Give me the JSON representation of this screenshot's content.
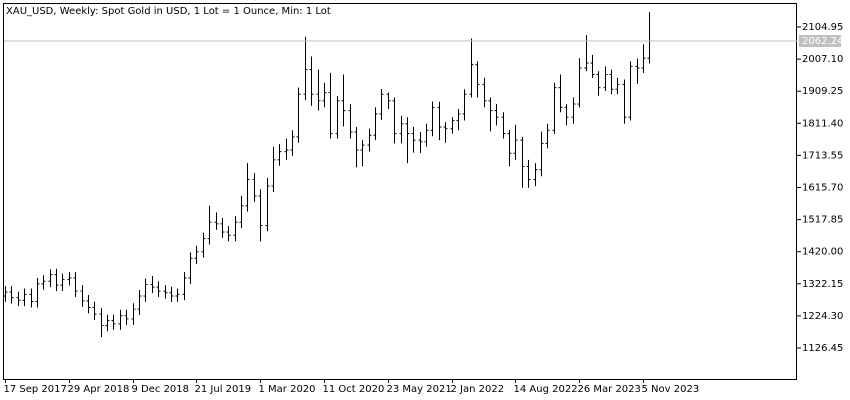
{
  "chart_data": {
    "type": "ohlc",
    "title": "XAU_USD, Weekly:  Spot Gold in USD, 1 Lot = 1 Ounce, Min: 1 Lot",
    "color": "#000000",
    "categories": [
      "17 Sep 2017",
      null,
      null,
      null,
      null,
      null,
      null,
      null,
      null,
      null,
      "29 Apr 2018",
      null,
      null,
      null,
      null,
      null,
      null,
      null,
      null,
      null,
      "9 Dec 2018",
      null,
      null,
      null,
      null,
      null,
      null,
      null,
      null,
      null,
      "21 Jul 2019",
      null,
      null,
      null,
      null,
      null,
      null,
      null,
      null,
      null,
      "1 Mar 2020",
      null,
      null,
      null,
      null,
      null,
      null,
      null,
      null,
      null,
      "11 Oct 2020",
      null,
      null,
      null,
      null,
      null,
      null,
      null,
      null,
      null,
      "23 May 2021",
      null,
      null,
      null,
      null,
      null,
      null,
      null,
      null,
      null,
      "2 Jan 2022",
      null,
      null,
      null,
      null,
      null,
      null,
      null,
      null,
      null,
      "14 Aug 2022",
      null,
      null,
      null,
      null,
      null,
      null,
      null,
      null,
      null,
      "26 Mar 2023",
      null,
      null,
      null,
      null,
      null,
      null,
      null,
      null,
      null,
      "5 Nov 2023",
      null
    ],
    "open": [
      1285,
      1297,
      1280,
      1272,
      1290,
      1268,
      1322,
      1330,
      1350,
      1318,
      1335,
      1340,
      1300,
      1270,
      1250,
      1230,
      1195,
      1210,
      1200,
      1225,
      1215,
      1245,
      1285,
      1320,
      1312,
      1300,
      1295,
      1285,
      1290,
      1340,
      1400,
      1420,
      1460,
      1510,
      1505,
      1480,
      1470,
      1510,
      1560,
      1640,
      1590,
      1500,
      1620,
      1700,
      1725,
      1730,
      1770,
      1900,
      1975,
      1900,
      1880,
      1905,
      1780,
      1880,
      1850,
      1785,
      1730,
      1745,
      1775,
      1840,
      1900,
      1880,
      1780,
      1810,
      1780,
      1760,
      1755,
      1790,
      1860,
      1800,
      1795,
      1820,
      1840,
      1900,
      1990,
      1930,
      1880,
      1850,
      1830,
      1780,
      1720,
      1760,
      1680,
      1640,
      1670,
      1750,
      1790,
      1920,
      1860,
      1830,
      1870,
      1980,
      1995,
      1960,
      1920,
      1960,
      1915,
      1930,
      1830,
      1985,
      1980,
      2010
    ],
    "high": [
      1315,
      1315,
      1298,
      1308,
      1308,
      1340,
      1348,
      1366,
      1368,
      1353,
      1358,
      1358,
      1318,
      1288,
      1268,
      1248,
      1228,
      1228,
      1243,
      1243,
      1263,
      1303,
      1338,
      1346,
      1330,
      1318,
      1313,
      1308,
      1358,
      1418,
      1438,
      1478,
      1560,
      1540,
      1523,
      1498,
      1528,
      1590,
      1690,
      1660,
      1610,
      1645,
      1740,
      1748,
      1765,
      1790,
      1920,
      2075,
      2015,
      1975,
      1935,
      1965,
      1895,
      1960,
      1870,
      1800,
      1760,
      1795,
      1860,
      1916,
      1905,
      1890,
      1834,
      1830,
      1800,
      1785,
      1810,
      1878,
      1877,
      1815,
      1830,
      1855,
      1915,
      2070,
      2000,
      1950,
      1890,
      1870,
      1845,
      1790,
      1807,
      1770,
      1700,
      1690,
      1786,
      1810,
      1935,
      1960,
      1870,
      1890,
      2010,
      2080,
      2020,
      1970,
      1985,
      1975,
      1950,
      1945,
      2000,
      2009,
      2052,
      2150
    ],
    "low": [
      1267,
      1262,
      1254,
      1254,
      1250,
      1250,
      1304,
      1312,
      1300,
      1300,
      1317,
      1282,
      1252,
      1232,
      1212,
      1160,
      1177,
      1182,
      1182,
      1197,
      1197,
      1227,
      1267,
      1294,
      1282,
      1277,
      1267,
      1267,
      1272,
      1322,
      1382,
      1402,
      1442,
      1487,
      1462,
      1452,
      1452,
      1492,
      1542,
      1572,
      1451,
      1482,
      1602,
      1682,
      1700,
      1712,
      1752,
      1882,
      1865,
      1850,
      1860,
      1765,
      1765,
      1802,
      1765,
      1677,
      1680,
      1725,
      1760,
      1822,
      1855,
      1750,
      1750,
      1690,
      1722,
      1721,
      1740,
      1772,
      1760,
      1752,
      1780,
      1790,
      1820,
      1890,
      1890,
      1860,
      1787,
      1805,
      1765,
      1680,
      1700,
      1615,
      1615,
      1620,
      1650,
      1735,
      1780,
      1845,
      1805,
      1810,
      1860,
      1970,
      1950,
      1895,
      1910,
      1900,
      1900,
      1810,
      1820,
      1932,
      1965,
      1994
    ],
    "close": [
      1297,
      1280,
      1272,
      1290,
      1268,
      1322,
      1330,
      1350,
      1318,
      1335,
      1340,
      1300,
      1270,
      1250,
      1230,
      1195,
      1210,
      1200,
      1225,
      1215,
      1245,
      1285,
      1320,
      1312,
      1300,
      1295,
      1285,
      1290,
      1340,
      1400,
      1420,
      1460,
      1510,
      1505,
      1480,
      1470,
      1510,
      1560,
      1640,
      1590,
      1500,
      1620,
      1700,
      1725,
      1730,
      1770,
      1900,
      1975,
      1900,
      1880,
      1905,
      1780,
      1880,
      1850,
      1785,
      1730,
      1745,
      1775,
      1840,
      1900,
      1880,
      1780,
      1810,
      1780,
      1760,
      1755,
      1790,
      1860,
      1800,
      1795,
      1820,
      1840,
      1900,
      1990,
      1930,
      1880,
      1850,
      1830,
      1780,
      1720,
      1760,
      1680,
      1640,
      1670,
      1750,
      1790,
      1920,
      1860,
      1830,
      1870,
      1980,
      1995,
      1960,
      1920,
      1960,
      1915,
      1930,
      1830,
      1985,
      1980,
      2010,
      2062
    ],
    "last_price": 2062.24,
    "ylim": [
      1032,
      2175
    ],
    "yticks": [
      1126.45,
      {
        "value": 1224.3,
        "label": "1224.30"
      },
      1322.15,
      {
        "value": 1420,
        "label": "1420.00"
      },
      1517.85,
      {
        "value": 1615.7,
        "label": "1615.70"
      },
      1713.55,
      {
        "value": 1811.4,
        "label": "1811.40"
      },
      1909.25,
      {
        "value": 2007.1,
        "label": "2007.10"
      },
      2104.95
    ]
  }
}
